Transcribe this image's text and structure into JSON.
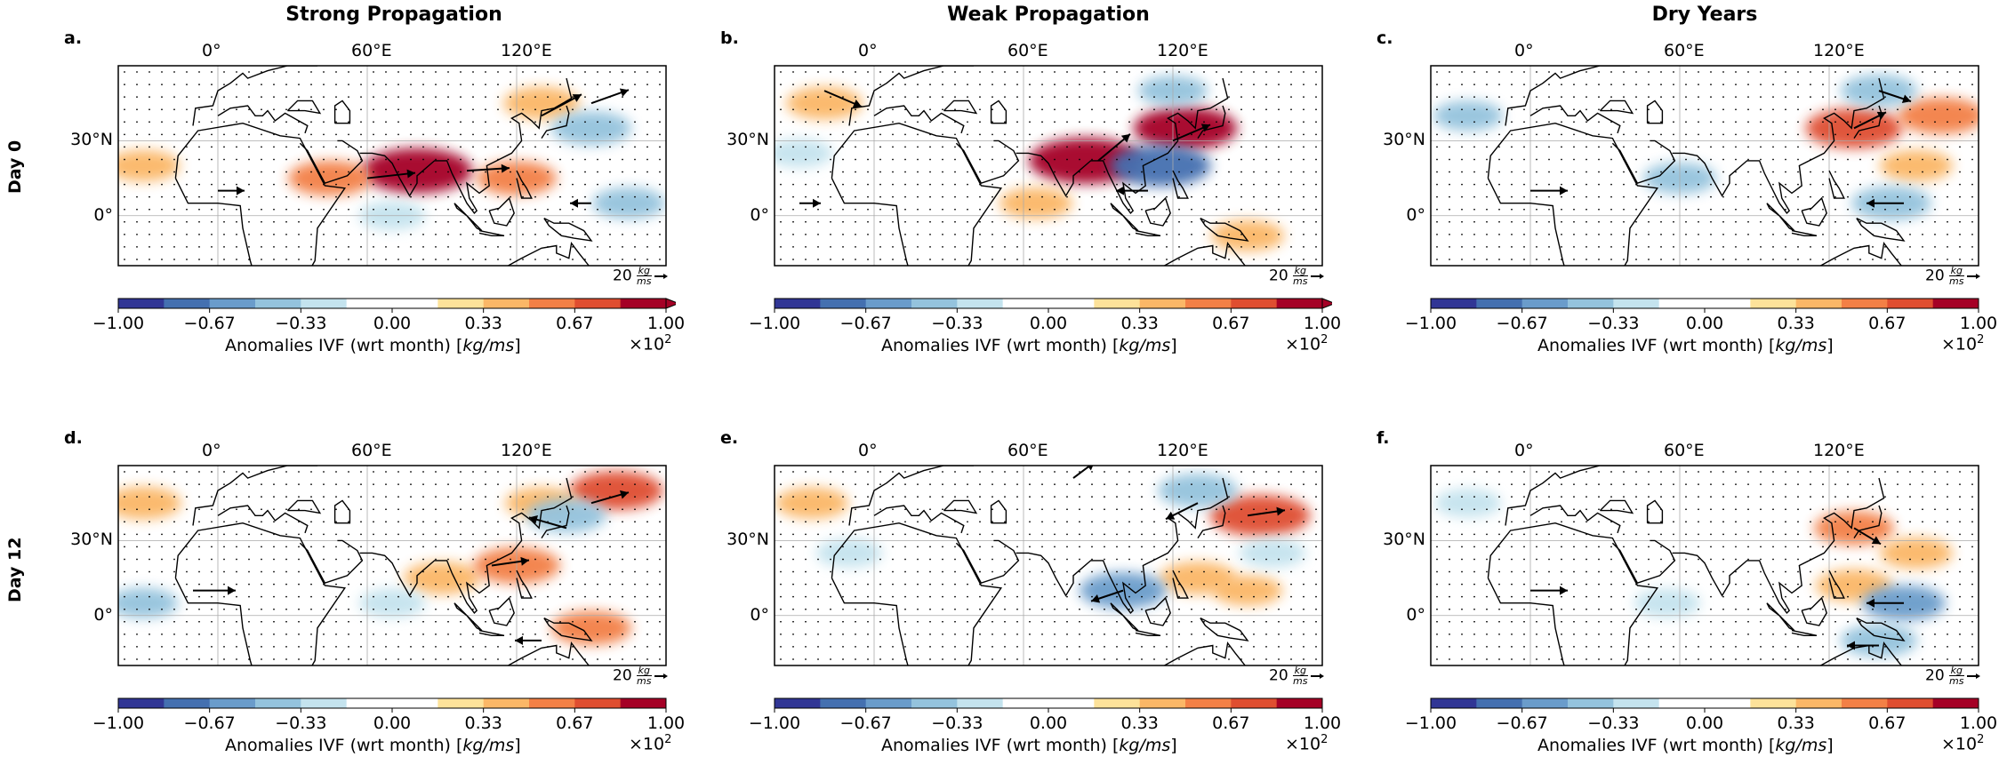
{
  "columns": [
    {
      "title": "Strong Propagation"
    },
    {
      "title": "Weak Propagation"
    },
    {
      "title": "Dry Years"
    }
  ],
  "rows": [
    {
      "label": "Day 0"
    },
    {
      "label": "Day 12"
    }
  ],
  "lon_ticks": [
    "0°",
    "60°E",
    "120°E"
  ],
  "lat_ticks": [
    "30°N",
    "0°"
  ],
  "colorbar": {
    "ticks": [
      "−1.00",
      "−0.67",
      "−0.33",
      "0.00",
      "0.33",
      "0.67",
      "1.00"
    ],
    "label_prefix": "Anomalies IVF (wrt month) [",
    "label_unit": "kg/ms",
    "label_suffix": "]",
    "multiplier": "×10",
    "multiplier_exp": "2",
    "colors": [
      "#313695",
      "#4470b0",
      "#6a9ccb",
      "#94c3dd",
      "#c4e3ee",
      "#ffffff",
      "#ffffff",
      "#fde29a",
      "#fbb767",
      "#f38046",
      "#df4e30",
      "#a50026"
    ]
  },
  "quiver_key": {
    "value": "20",
    "unit_top": "kg",
    "unit_bottom": "ms"
  },
  "chart_data": [
    {
      "type": "heatmap",
      "panel": "a.",
      "column": "Strong Propagation",
      "row": "Day 0",
      "extend_max": true,
      "xlim": [
        -40,
        180
      ],
      "ylim": [
        -20,
        60
      ],
      "anomaly_blobs": [
        {
          "lon": 80,
          "lat": 18,
          "value": 0.95
        },
        {
          "lon": 45,
          "lat": 15,
          "value": 0.55
        },
        {
          "lon": 120,
          "lat": 15,
          "value": 0.5
        },
        {
          "lon": -30,
          "lat": 20,
          "value": 0.4
        },
        {
          "lon": 130,
          "lat": 45,
          "value": 0.45
        },
        {
          "lon": 150,
          "lat": 35,
          "value": -0.5
        },
        {
          "lon": 165,
          "lat": 5,
          "value": -0.4
        },
        {
          "lon": 70,
          "lat": 0,
          "value": -0.3
        }
      ],
      "vectors": [
        {
          "lon": 60,
          "lat": 15,
          "u": 18,
          "v": 2
        },
        {
          "lon": 100,
          "lat": 18,
          "u": 16,
          "v": 1
        },
        {
          "lon": 130,
          "lat": 40,
          "u": 15,
          "v": 8
        },
        {
          "lon": 150,
          "lat": 45,
          "u": 14,
          "v": 5
        },
        {
          "lon": 0,
          "lat": 10,
          "u": 10,
          "v": 0
        },
        {
          "lon": 150,
          "lat": 5,
          "u": -8,
          "v": 0
        }
      ]
    },
    {
      "type": "heatmap",
      "panel": "b.",
      "column": "Weak Propagation",
      "row": "Day 0",
      "extend_max": true,
      "xlim": [
        -40,
        180
      ],
      "ylim": [
        -20,
        60
      ],
      "anomaly_blobs": [
        {
          "lon": 85,
          "lat": 22,
          "value": 1.0
        },
        {
          "lon": 125,
          "lat": 35,
          "value": 0.85
        },
        {
          "lon": -20,
          "lat": 45,
          "value": 0.45
        },
        {
          "lon": 65,
          "lat": 5,
          "value": 0.4
        },
        {
          "lon": 150,
          "lat": -8,
          "value": 0.4
        },
        {
          "lon": 115,
          "lat": 20,
          "value": -0.8
        },
        {
          "lon": -30,
          "lat": 25,
          "value": -0.3
        },
        {
          "lon": 120,
          "lat": 50,
          "value": -0.35
        }
      ],
      "vectors": [
        {
          "lon": -20,
          "lat": 50,
          "u": 14,
          "v": -6
        },
        {
          "lon": 90,
          "lat": 22,
          "u": 12,
          "v": 10
        },
        {
          "lon": 120,
          "lat": 30,
          "u": 14,
          "v": 6
        },
        {
          "lon": 110,
          "lat": 10,
          "u": -12,
          "v": 0
        },
        {
          "lon": -30,
          "lat": 5,
          "u": 8,
          "v": 0
        }
      ]
    },
    {
      "type": "heatmap",
      "panel": "c.",
      "column": "Dry Years",
      "row": "Day 0",
      "extend_max": false,
      "xlim": [
        -40,
        180
      ],
      "ylim": [
        -20,
        60
      ],
      "anomaly_blobs": [
        {
          "lon": 130,
          "lat": 35,
          "value": 0.75
        },
        {
          "lon": 155,
          "lat": 20,
          "value": 0.4
        },
        {
          "lon": 165,
          "lat": 40,
          "value": 0.6
        },
        {
          "lon": -25,
          "lat": 40,
          "value": -0.35
        },
        {
          "lon": 60,
          "lat": 15,
          "value": -0.4
        },
        {
          "lon": 145,
          "lat": 5,
          "value": -0.5
        },
        {
          "lon": 140,
          "lat": 50,
          "value": -0.45
        }
      ],
      "vectors": [
        {
          "lon": 0,
          "lat": 10,
          "u": 14,
          "v": 0
        },
        {
          "lon": 150,
          "lat": 5,
          "u": -14,
          "v": 0
        },
        {
          "lon": 130,
          "lat": 35,
          "u": 12,
          "v": 6
        },
        {
          "lon": 140,
          "lat": 50,
          "u": 12,
          "v": -4
        }
      ]
    },
    {
      "type": "heatmap",
      "panel": "d.",
      "column": "Strong Propagation",
      "row": "Day 12",
      "extend_max": false,
      "xlim": [
        -40,
        180
      ],
      "ylim": [
        -20,
        60
      ],
      "anomaly_blobs": [
        {
          "lon": -30,
          "lat": 45,
          "value": 0.45
        },
        {
          "lon": 90,
          "lat": 15,
          "value": 0.45
        },
        {
          "lon": 120,
          "lat": 20,
          "value": 0.6
        },
        {
          "lon": 160,
          "lat": 50,
          "value": 0.7
        },
        {
          "lon": 130,
          "lat": 45,
          "value": 0.4
        },
        {
          "lon": 150,
          "lat": -5,
          "value": 0.5
        },
        {
          "lon": -30,
          "lat": 5,
          "value": -0.35
        },
        {
          "lon": 140,
          "lat": 40,
          "value": -0.5
        },
        {
          "lon": 70,
          "lat": 5,
          "value": -0.3
        }
      ],
      "vectors": [
        {
          "lon": -10,
          "lat": 10,
          "u": 16,
          "v": 0
        },
        {
          "lon": 110,
          "lat": 20,
          "u": 14,
          "v": 2
        },
        {
          "lon": 150,
          "lat": 45,
          "u": 14,
          "v": 4
        },
        {
          "lon": 140,
          "lat": 35,
          "u": -14,
          "v": 4
        },
        {
          "lon": 130,
          "lat": -10,
          "u": -10,
          "v": 0
        }
      ]
    },
    {
      "type": "heatmap",
      "panel": "e.",
      "column": "Weak Propagation",
      "row": "Day 12",
      "extend_max": false,
      "xlim": [
        -40,
        180
      ],
      "ylim": [
        -20,
        60
      ],
      "anomaly_blobs": [
        {
          "lon": -25,
          "lat": 45,
          "value": 0.4
        },
        {
          "lon": 155,
          "lat": 40,
          "value": 0.8
        },
        {
          "lon": 130,
          "lat": 15,
          "value": 0.45
        },
        {
          "lon": 150,
          "lat": 10,
          "value": 0.35
        },
        {
          "lon": -10,
          "lat": 25,
          "value": -0.3
        },
        {
          "lon": 100,
          "lat": 10,
          "value": -0.6
        },
        {
          "lon": 130,
          "lat": 50,
          "value": -0.5
        },
        {
          "lon": 160,
          "lat": 25,
          "value": -0.3
        }
      ],
      "vectors": [
        {
          "lon": 100,
          "lat": 10,
          "u": -12,
          "v": -4
        },
        {
          "lon": 130,
          "lat": 45,
          "u": -12,
          "v": -6
        },
        {
          "lon": 150,
          "lat": 40,
          "u": 14,
          "v": 2
        },
        {
          "lon": 80,
          "lat": 55,
          "u": 8,
          "v": 6
        }
      ]
    },
    {
      "type": "heatmap",
      "panel": "f.",
      "column": "Dry Years",
      "row": "Day 12",
      "extend_max": false,
      "xlim": [
        -40,
        180
      ],
      "ylim": [
        -20,
        60
      ],
      "anomaly_blobs": [
        {
          "lon": 130,
          "lat": 35,
          "value": 0.5
        },
        {
          "lon": 155,
          "lat": 25,
          "value": 0.4
        },
        {
          "lon": 130,
          "lat": 12,
          "value": 0.45
        },
        {
          "lon": -25,
          "lat": 45,
          "value": -0.3
        },
        {
          "lon": 150,
          "lat": 5,
          "value": -0.55
        },
        {
          "lon": 140,
          "lat": -10,
          "value": -0.45
        },
        {
          "lon": 55,
          "lat": 5,
          "value": -0.3
        }
      ],
      "vectors": [
        {
          "lon": 0,
          "lat": 10,
          "u": 14,
          "v": 0
        },
        {
          "lon": 150,
          "lat": 5,
          "u": -14,
          "v": 0
        },
        {
          "lon": 140,
          "lat": -12,
          "u": -12,
          "v": 0
        },
        {
          "lon": 130,
          "lat": 35,
          "u": 10,
          "v": -6
        }
      ]
    }
  ]
}
